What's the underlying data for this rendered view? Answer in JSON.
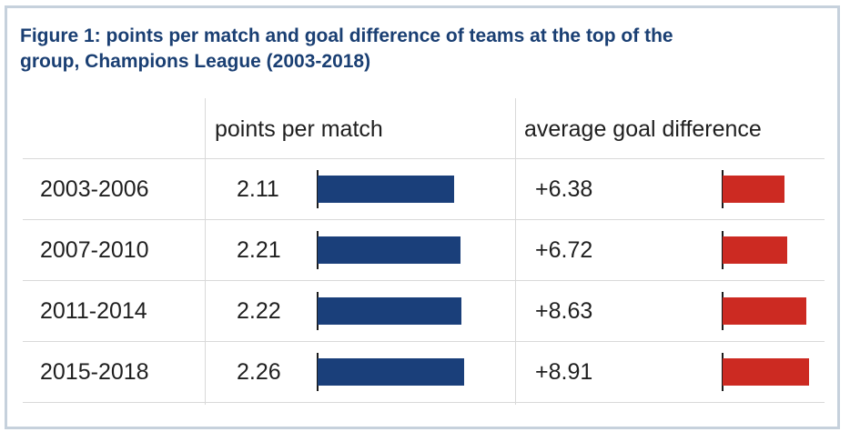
{
  "title_lines": [
    "Figure 1: points per match and goal difference of teams at the top of the",
    "group, Champions League (2003-2018)"
  ],
  "columns": {
    "period": "",
    "points": "points per match",
    "goal_diff": "average goal difference"
  },
  "colors": {
    "title": "#1a3f73",
    "points_bar": "#1a3f7a",
    "goal_bar": "#cc2a22",
    "border": "#c6d1dc",
    "grid": "#d9d9d9"
  },
  "chart_data": {
    "type": "table",
    "title": "Figure 1: points per match and goal difference of teams at the top of the group, Champions League (2003-2018)",
    "rows": [
      {
        "period": "2003-2006",
        "points": 2.11,
        "points_label": "2.11",
        "goal_diff": 6.38,
        "goal_label": "+6.38"
      },
      {
        "period": "2007-2010",
        "points": 2.21,
        "points_label": "2.21",
        "goal_diff": 6.72,
        "goal_label": "+6.72"
      },
      {
        "period": "2011-2014",
        "points": 2.22,
        "points_label": "2.22",
        "goal_diff": 8.63,
        "goal_label": "+8.63"
      },
      {
        "period": "2015-2018",
        "points": 2.26,
        "points_label": "2.26",
        "goal_diff": 8.91,
        "goal_label": "+8.91"
      }
    ],
    "series": [
      {
        "name": "points per match",
        "values": [
          2.11,
          2.21,
          2.22,
          2.26
        ]
      },
      {
        "name": "average goal difference",
        "values": [
          6.38,
          6.72,
          8.63,
          8.91
        ]
      }
    ]
  }
}
